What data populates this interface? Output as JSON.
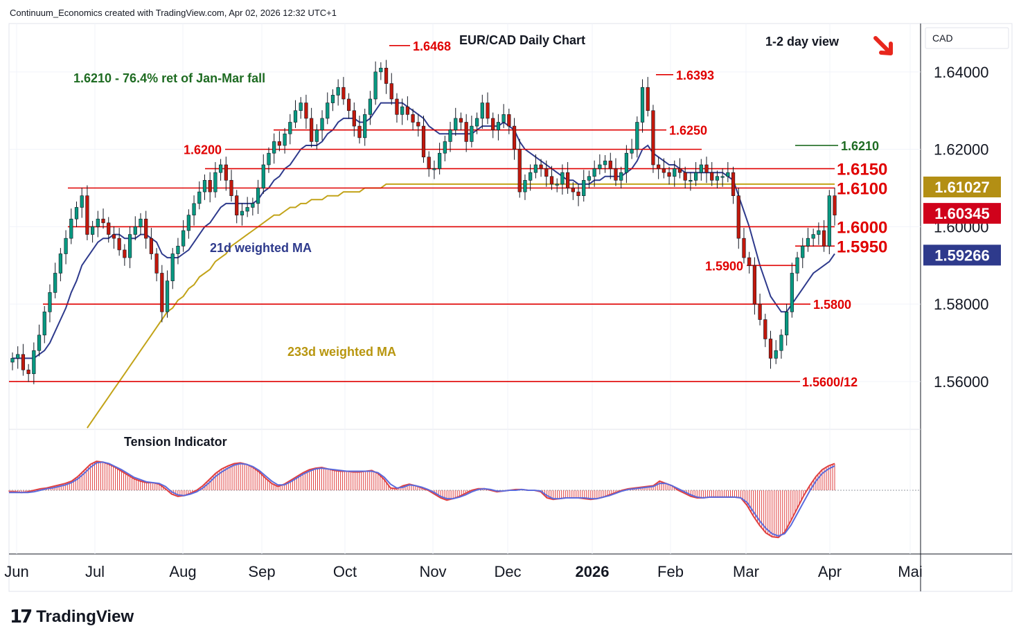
{
  "header": {
    "text": "Continuum_Economics created with TradingView.com, Apr 02, 2026 12:32 UTC+1"
  },
  "branding": {
    "logo_text": "TradingView",
    "logo_icon": "tradingview-logo-icon"
  },
  "chart_data": {
    "type": "candlestick",
    "title": "EUR/CAD Daily Chart",
    "subtitle": "1-2 day view",
    "bias_icon": "arrow-down-right-icon",
    "currency_label": "CAD",
    "colors": {
      "up": "#089981",
      "down": "#c2180c",
      "level": "#e00000",
      "ma21": "#2e3a8c",
      "ma233": "#c2a318",
      "tension_hist": "#e04040",
      "tension_line": "#5b6bdc"
    },
    "ylim": [
      1.548,
      1.6525
    ],
    "y_ticks": [
      "1.64000",
      "1.62000",
      "1.60000",
      "1.58000",
      "1.56000"
    ],
    "x_ticks": [
      "Jun",
      "Jul",
      "Aug",
      "Sep",
      "Oct",
      "Nov",
      "Dec",
      "2026",
      "Feb",
      "Mar",
      "Apr",
      "Mai"
    ],
    "price_badges": [
      {
        "value": "1.61027",
        "bg": "#b38f14"
      },
      {
        "value": "1.60345",
        "bg": "#d0021b"
      },
      {
        "value": "1.59266",
        "bg": "#2e3a8c"
      }
    ],
    "annotations": {
      "fib": "1.6210 - 76.4% ret of Jan-Mar fall",
      "ma21_label": "21d weighted MA",
      "ma233_label": "233d weighted MA",
      "tension_label": "Tension Indicator"
    },
    "levels": [
      {
        "value": 1.6468,
        "label": "1.6468"
      },
      {
        "value": 1.6393,
        "label": "1.6393"
      },
      {
        "value": 1.625,
        "label": "1.6250"
      },
      {
        "value": 1.621,
        "label": "1.6210"
      },
      {
        "value": 1.62,
        "label": "1.6200"
      },
      {
        "value": 1.615,
        "label": "1.6150"
      },
      {
        "value": 1.61,
        "label": "1.6100"
      },
      {
        "value": 1.6,
        "label": "1.6000"
      },
      {
        "value": 1.595,
        "label": "1.5950"
      },
      {
        "value": 1.59,
        "label": "1.5900"
      },
      {
        "value": 1.58,
        "label": "1.5800"
      },
      {
        "value": 1.56,
        "label": "1.5600/12"
      }
    ],
    "close_series": [
      1.566,
      1.567,
      1.563,
      1.562,
      1.568,
      1.572,
      1.578,
      1.583,
      1.588,
      1.593,
      1.597,
      1.602,
      1.605,
      1.608,
      1.598,
      1.6,
      1.602,
      1.601,
      1.598,
      1.597,
      1.594,
      1.592,
      1.598,
      1.6,
      1.602,
      1.597,
      1.593,
      1.588,
      1.578,
      1.586,
      1.593,
      1.595,
      1.599,
      1.603,
      1.606,
      1.609,
      1.612,
      1.609,
      1.614,
      1.616,
      1.612,
      1.608,
      1.603,
      1.604,
      1.605,
      1.606,
      1.61,
      1.616,
      1.619,
      1.622,
      1.621,
      1.624,
      1.627,
      1.63,
      1.632,
      1.628,
      1.622,
      1.625,
      1.628,
      1.632,
      1.634,
      1.636,
      1.633,
      1.63,
      1.626,
      1.623,
      1.629,
      1.633,
      1.64,
      1.641,
      1.637,
      1.633,
      1.629,
      1.631,
      1.629,
      1.627,
      1.626,
      1.618,
      1.615,
      1.615,
      1.619,
      1.622,
      1.625,
      1.628,
      1.627,
      1.622,
      1.626,
      1.628,
      1.632,
      1.628,
      1.625,
      1.627,
      1.629,
      1.626,
      1.62,
      1.609,
      1.612,
      1.614,
      1.616,
      1.615,
      1.613,
      1.611,
      1.611,
      1.614,
      1.61,
      1.609,
      1.608,
      1.612,
      1.613,
      1.615,
      1.616,
      1.617,
      1.615,
      1.612,
      1.614,
      1.619,
      1.62,
      1.627,
      1.636,
      1.63,
      1.616,
      1.615,
      1.614,
      1.613,
      1.615,
      1.614,
      1.612,
      1.612,
      1.614,
      1.616,
      1.614,
      1.612,
      1.613,
      1.613,
      1.614,
      1.608,
      1.597,
      1.592,
      1.59,
      1.58,
      1.576,
      1.571,
      1.566,
      1.568,
      1.572,
      1.578,
      1.588,
      1.592,
      1.595,
      1.597,
      1.598,
      1.599,
      1.595,
      1.608,
      1.603
    ],
    "ma21_series": [
      1.566,
      1.566,
      1.566,
      1.566,
      1.566,
      1.567,
      1.568,
      1.57,
      1.573,
      1.576,
      1.579,
      1.583,
      1.586,
      1.59,
      1.592,
      1.594,
      1.596,
      1.597,
      1.597,
      1.598,
      1.598,
      1.597,
      1.597,
      1.597,
      1.598,
      1.598,
      1.597,
      1.596,
      1.593,
      1.592,
      1.592,
      1.592,
      1.593,
      1.594,
      1.596,
      1.598,
      1.6,
      1.601,
      1.603,
      1.605,
      1.606,
      1.606,
      1.606,
      1.606,
      1.606,
      1.606,
      1.607,
      1.609,
      1.61,
      1.612,
      1.613,
      1.615,
      1.616,
      1.618,
      1.62,
      1.621,
      1.621,
      1.621,
      1.622,
      1.624,
      1.625,
      1.627,
      1.628,
      1.628,
      1.628,
      1.627,
      1.627,
      1.628,
      1.63,
      1.632,
      1.632,
      1.632,
      1.632,
      1.632,
      1.631,
      1.63,
      1.629,
      1.628,
      1.626,
      1.625,
      1.624,
      1.624,
      1.624,
      1.624,
      1.624,
      1.624,
      1.624,
      1.625,
      1.626,
      1.626,
      1.626,
      1.626,
      1.627,
      1.626,
      1.625,
      1.622,
      1.62,
      1.619,
      1.618,
      1.617,
      1.616,
      1.615,
      1.614,
      1.613,
      1.612,
      1.612,
      1.611,
      1.611,
      1.611,
      1.612,
      1.612,
      1.613,
      1.613,
      1.613,
      1.613,
      1.614,
      1.615,
      1.617,
      1.62,
      1.621,
      1.619,
      1.618,
      1.617,
      1.616,
      1.616,
      1.615,
      1.614,
      1.614,
      1.614,
      1.614,
      1.614,
      1.614,
      1.614,
      1.614,
      1.613,
      1.612,
      1.608,
      1.604,
      1.6,
      1.595,
      1.59,
      1.586,
      1.582,
      1.58,
      1.578,
      1.578,
      1.58,
      1.582,
      1.584,
      1.586,
      1.588,
      1.589,
      1.59,
      1.591,
      1.593
    ],
    "ma233_series": [
      1.508,
      1.51,
      1.512,
      1.515,
      1.518,
      1.521,
      1.524,
      1.527,
      1.53,
      1.533,
      1.536,
      1.539,
      1.542,
      1.545,
      1.548,
      1.55,
      1.552,
      1.554,
      1.556,
      1.558,
      1.56,
      1.562,
      1.564,
      1.566,
      1.568,
      1.57,
      1.572,
      1.574,
      1.576,
      1.578,
      1.579,
      1.581,
      1.582,
      1.584,
      1.585,
      1.587,
      1.588,
      1.589,
      1.591,
      1.592,
      1.593,
      1.595,
      1.596,
      1.597,
      1.598,
      1.599,
      1.6,
      1.601,
      1.602,
      1.603,
      1.603,
      1.604,
      1.605,
      1.605,
      1.606,
      1.606,
      1.607,
      1.607,
      1.607,
      1.608,
      1.608,
      1.608,
      1.609,
      1.609,
      1.609,
      1.609,
      1.61,
      1.61,
      1.61,
      1.61,
      1.611,
      1.611,
      1.611,
      1.611,
      1.611,
      1.611,
      1.611,
      1.611,
      1.611,
      1.611,
      1.611,
      1.611,
      1.611,
      1.611,
      1.611,
      1.611,
      1.611,
      1.611,
      1.611,
      1.611,
      1.611,
      1.611,
      1.611,
      1.611,
      1.611,
      1.611,
      1.611,
      1.611,
      1.611,
      1.611,
      1.611,
      1.611,
      1.611,
      1.611,
      1.611,
      1.611,
      1.611,
      1.611,
      1.611,
      1.611,
      1.611,
      1.611,
      1.611,
      1.611,
      1.611,
      1.611,
      1.611,
      1.611,
      1.611,
      1.611,
      1.611,
      1.611,
      1.611,
      1.611,
      1.611,
      1.611,
      1.611,
      1.611,
      1.611,
      1.611,
      1.611,
      1.611,
      1.611,
      1.611,
      1.611,
      1.611,
      1.611,
      1.611,
      1.611,
      1.611,
      1.611,
      1.611,
      1.611,
      1.611,
      1.611,
      1.611,
      1.611,
      1.611,
      1.611,
      1.611,
      1.611,
      1.611,
      1.611,
      1.611,
      1.611
    ],
    "tension_series": [
      -0.02,
      -0.02,
      -0.03,
      -0.02,
      0.0,
      0.02,
      0.03,
      0.05,
      0.07,
      0.09,
      0.12,
      0.18,
      0.26,
      0.34,
      0.38,
      0.37,
      0.34,
      0.3,
      0.25,
      0.2,
      0.15,
      0.12,
      0.1,
      0.1,
      0.08,
      0.02,
      -0.05,
      -0.08,
      -0.07,
      -0.04,
      0.0,
      0.06,
      0.14,
      0.22,
      0.28,
      0.32,
      0.35,
      0.36,
      0.34,
      0.3,
      0.24,
      0.16,
      0.09,
      0.05,
      0.08,
      0.13,
      0.18,
      0.23,
      0.27,
      0.29,
      0.3,
      0.28,
      0.26,
      0.25,
      0.25,
      0.24,
      0.24,
      0.25,
      0.26,
      0.22,
      0.14,
      0.03,
      0.02,
      0.06,
      0.08,
      0.06,
      0.03,
      0.0,
      -0.05,
      -0.1,
      -0.13,
      -0.11,
      -0.08,
      -0.04,
      0.0,
      0.02,
      0.02,
      0.0,
      -0.02,
      -0.01,
      0.0,
      0.01,
      0.01,
      0.0,
      0.0,
      -0.02,
      -0.1,
      -0.12,
      -0.11,
      -0.1,
      -0.1,
      -0.1,
      -0.11,
      -0.12,
      -0.11,
      -0.09,
      -0.06,
      -0.03,
      0.0,
      0.02,
      0.03,
      0.04,
      0.05,
      0.06,
      0.12,
      0.09,
      0.06,
      0.0,
      -0.04,
      -0.08,
      -0.1,
      -0.1,
      -0.09,
      -0.09,
      -0.09,
      -0.09,
      -0.09,
      -0.1,
      -0.2,
      -0.34,
      -0.46,
      -0.56,
      -0.61,
      -0.62,
      -0.55,
      -0.4,
      -0.24,
      -0.08,
      0.06,
      0.18,
      0.27,
      0.32,
      0.35
    ],
    "tension_signal": [
      -0.03,
      -0.03,
      -0.03,
      -0.03,
      -0.02,
      0.0,
      0.02,
      0.03,
      0.05,
      0.07,
      0.1,
      0.15,
      0.22,
      0.3,
      0.36,
      0.37,
      0.35,
      0.31,
      0.27,
      0.22,
      0.17,
      0.14,
      0.11,
      0.1,
      0.09,
      0.05,
      -0.02,
      -0.06,
      -0.07,
      -0.05,
      -0.02,
      0.03,
      0.1,
      0.18,
      0.24,
      0.29,
      0.33,
      0.35,
      0.34,
      0.31,
      0.26,
      0.19,
      0.12,
      0.07,
      0.07,
      0.11,
      0.16,
      0.21,
      0.25,
      0.28,
      0.29,
      0.28,
      0.27,
      0.26,
      0.25,
      0.25,
      0.25,
      0.25,
      0.25,
      0.23,
      0.17,
      0.08,
      0.03,
      0.04,
      0.07,
      0.06,
      0.04,
      0.01,
      -0.03,
      -0.08,
      -0.11,
      -0.11,
      -0.09,
      -0.06,
      -0.02,
      0.01,
      0.02,
      0.01,
      -0.01,
      -0.01,
      0.0,
      0.0,
      0.01,
      0.0,
      0.0,
      -0.01,
      -0.07,
      -0.11,
      -0.11,
      -0.1,
      -0.1,
      -0.1,
      -0.1,
      -0.11,
      -0.11,
      -0.09,
      -0.07,
      -0.04,
      -0.01,
      0.01,
      0.02,
      0.03,
      0.04,
      0.05,
      0.09,
      0.09,
      0.06,
      0.02,
      -0.02,
      -0.06,
      -0.09,
      -0.1,
      -0.09,
      -0.09,
      -0.09,
      -0.09,
      -0.09,
      -0.1,
      -0.16,
      -0.28,
      -0.4,
      -0.5,
      -0.57,
      -0.6,
      -0.57,
      -0.46,
      -0.31,
      -0.16,
      -0.01,
      0.12,
      0.22,
      0.28,
      0.32
    ]
  }
}
